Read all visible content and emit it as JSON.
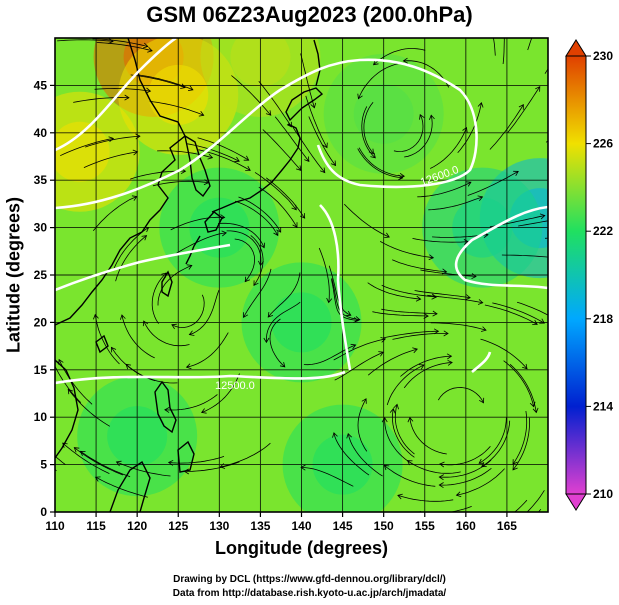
{
  "title": "GSM 06Z23Aug2023 (200.0hPa)",
  "xlabel": "Longitude (degrees)",
  "ylabel": "Latitude  (degrees)",
  "credit_line1": "Drawing by DCL (https://www.gfd-dennou.org/library/dcl/)",
  "credit_line2": "Data from http://database.rish.kyoto-u.ac.jp/arch/jmadata/",
  "contour_labels": [
    "12600.0",
    "12500.0"
  ],
  "colors": {
    "coast": "#000000",
    "contour": "#ffffff",
    "grid": "#000000",
    "streamline": "#000000"
  },
  "chart_data": {
    "type": "heatmap",
    "title": "GSM 06Z23Aug2023 (200.0hPa)",
    "xlabel": "Longitude (degrees)",
    "ylabel": "Latitude  (degrees)",
    "xlim": [
      110,
      170
    ],
    "ylim": [
      0,
      50
    ],
    "xticks": [
      110,
      115,
      120,
      125,
      130,
      135,
      140,
      145,
      150,
      155,
      160,
      165
    ],
    "yticks": [
      0,
      5,
      10,
      15,
      20,
      25,
      30,
      35,
      40,
      45
    ],
    "grid": true,
    "colorbar": {
      "min": 210,
      "max": 230,
      "ticks": [
        210,
        214,
        218,
        222,
        226,
        230
      ],
      "colors": [
        "#e040d0",
        "#0020d0",
        "#00a8ff",
        "#20e060",
        "#f0e000",
        "#e04000"
      ]
    },
    "field_hotspots": [
      {
        "lon": 122,
        "lat": 48,
        "value": 229
      },
      {
        "lon": 113,
        "lat": 38,
        "value": 226
      },
      {
        "lon": 125,
        "lat": 44,
        "value": 226
      },
      {
        "lon": 135,
        "lat": 48,
        "value": 225
      },
      {
        "lon": 169,
        "lat": 31,
        "value": 219
      },
      {
        "lon": 162,
        "lat": 30,
        "value": 221
      },
      {
        "lon": 150,
        "lat": 42,
        "value": 223
      },
      {
        "lon": 140,
        "lat": 20,
        "value": 222
      },
      {
        "lon": 130,
        "lat": 30,
        "value": 222
      },
      {
        "lon": 145,
        "lat": 5,
        "value": 222
      },
      {
        "lon": 120,
        "lat": 8,
        "value": 222
      }
    ],
    "height_contours": [
      {
        "label": "12600.0",
        "value": 12600
      },
      {
        "label": "12500.0",
        "value": 12500
      }
    ]
  }
}
